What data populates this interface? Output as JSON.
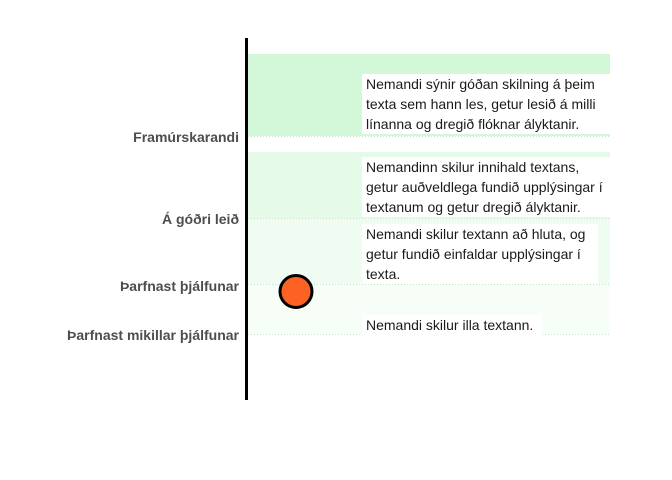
{
  "chart_data": {
    "type": "scatter",
    "title": "",
    "bands": [
      {
        "label": "Framúrskarandi",
        "description": "Nemandi sýnir góðan skilning á þeim texta sem hann les, getur lesið á milli línanna og dregið flóknar ályktanir.",
        "color": "#d2f8d9"
      },
      {
        "label": "Á góðri leið",
        "description": "Nemandinn skilur innihald textans, getur auðveldlega fundið upplýsingar í textanum og getur dregið ályktanir.",
        "color": "#e6fae9"
      },
      {
        "label": "Þarfnast þjálfunar",
        "description": "Nemandi skilur textann að hluta, og getur fundið einfaldar upplýsingar í texta.",
        "color": "#f0fcf2"
      },
      {
        "label": "Þarfnast mikillar þjálfunar",
        "description": "Nemandi skilur illa textann.",
        "color": "#f7fef8"
      }
    ],
    "point": {
      "level": 0.85,
      "color": "#fc6221",
      "stroke": "#000000"
    },
    "axis_color": "#000000"
  }
}
